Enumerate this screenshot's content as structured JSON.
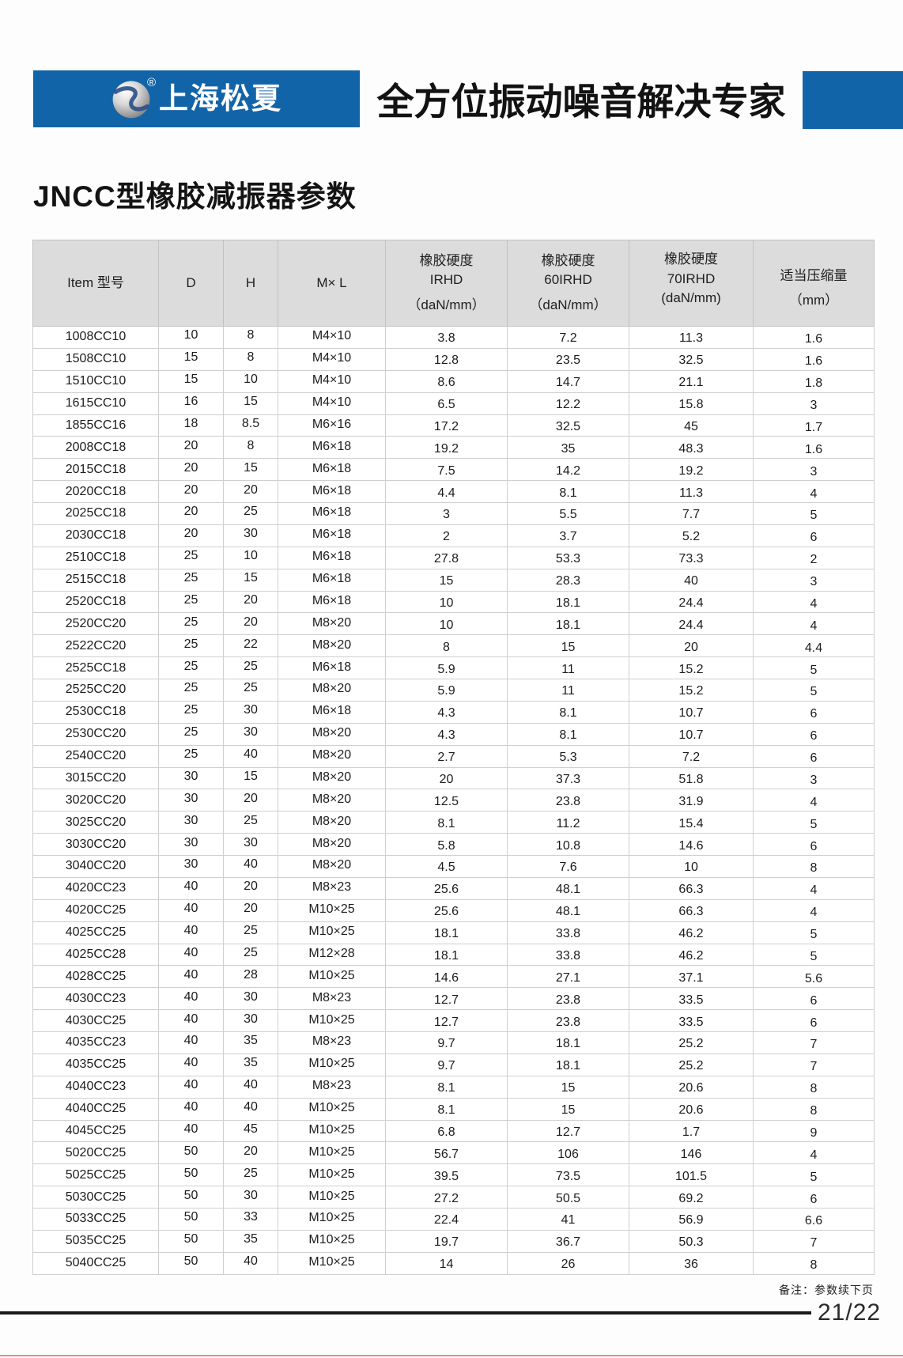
{
  "colors": {
    "brand_blue": "#1264a8",
    "table_header_gray": "#dcdcdc",
    "bottom_edge_red": "#e8897b"
  },
  "header": {
    "company_name": "上海松夏",
    "registered_mark": "®",
    "slogan": "全方位振动噪音解决专家"
  },
  "section_title": "JNCC型橡胶减振器参数",
  "table": {
    "header": [
      [
        "Item 型号"
      ],
      [
        "D"
      ],
      [
        "H"
      ],
      [
        "M× L"
      ],
      [
        "橡胶硬度",
        "IRHD",
        "（daN/mm）"
      ],
      [
        "橡胶硬度",
        "60IRHD",
        "（daN/mm）"
      ],
      [
        "橡胶硬度",
        "70IRHD",
        "(daN/mm)"
      ],
      [
        "适当压缩量",
        "（mm）"
      ]
    ],
    "rows": [
      [
        "1008CC10",
        "10",
        "8",
        "M4×10",
        "3.8",
        "7.2",
        "11.3",
        "1.6"
      ],
      [
        "1508CC10",
        "15",
        "8",
        "M4×10",
        "12.8",
        "23.5",
        "32.5",
        "1.6"
      ],
      [
        "1510CC10",
        "15",
        "10",
        "M4×10",
        "8.6",
        "14.7",
        "21.1",
        "1.8"
      ],
      [
        "1615CC10",
        "16",
        "15",
        "M4×10",
        "6.5",
        "12.2",
        "15.8",
        "3"
      ],
      [
        "1855CC16",
        "18",
        "8.5",
        "M6×16",
        "17.2",
        "32.5",
        "45",
        "1.7"
      ],
      [
        "2008CC18",
        "20",
        "8",
        "M6×18",
        "19.2",
        "35",
        "48.3",
        "1.6"
      ],
      [
        "2015CC18",
        "20",
        "15",
        "M6×18",
        "7.5",
        "14.2",
        "19.2",
        "3"
      ],
      [
        "2020CC18",
        "20",
        "20",
        "M6×18",
        "4.4",
        "8.1",
        "11.3",
        "4"
      ],
      [
        "2025CC18",
        "20",
        "25",
        "M6×18",
        "3",
        "5.5",
        "7.7",
        "5"
      ],
      [
        "2030CC18",
        "20",
        "30",
        "M6×18",
        "2",
        "3.7",
        "5.2",
        "6"
      ],
      [
        "2510CC18",
        "25",
        "10",
        "M6×18",
        "27.8",
        "53.3",
        "73.3",
        "2"
      ],
      [
        "2515CC18",
        "25",
        "15",
        "M6×18",
        "15",
        "28.3",
        "40",
        "3"
      ],
      [
        "2520CC18",
        "25",
        "20",
        "M6×18",
        "10",
        "18.1",
        "24.4",
        "4"
      ],
      [
        "2520CC20",
        "25",
        "20",
        "M8×20",
        "10",
        "18.1",
        "24.4",
        "4"
      ],
      [
        "2522CC20",
        "25",
        "22",
        "M8×20",
        "8",
        "15",
        "20",
        "4.4"
      ],
      [
        "2525CC18",
        "25",
        "25",
        "M6×18",
        "5.9",
        "11",
        "15.2",
        "5"
      ],
      [
        "2525CC20",
        "25",
        "25",
        "M8×20",
        "5.9",
        "11",
        "15.2",
        "5"
      ],
      [
        "2530CC18",
        "25",
        "30",
        "M6×18",
        "4.3",
        "8.1",
        "10.7",
        "6"
      ],
      [
        "2530CC20",
        "25",
        "30",
        "M8×20",
        "4.3",
        "8.1",
        "10.7",
        "6"
      ],
      [
        "2540CC20",
        "25",
        "40",
        "M8×20",
        "2.7",
        "5.3",
        "7.2",
        "6"
      ],
      [
        "3015CC20",
        "30",
        "15",
        "M8×20",
        "20",
        "37.3",
        "51.8",
        "3"
      ],
      [
        "3020CC20",
        "30",
        "20",
        "M8×20",
        "12.5",
        "23.8",
        "31.9",
        "4"
      ],
      [
        "3025CC20",
        "30",
        "25",
        "M8×20",
        "8.1",
        "11.2",
        "15.4",
        "5"
      ],
      [
        "3030CC20",
        "30",
        "30",
        "M8×20",
        "5.8",
        "10.8",
        "14.6",
        "6"
      ],
      [
        "3040CC20",
        "30",
        "40",
        "M8×20",
        "4.5",
        "7.6",
        "10",
        "8"
      ],
      [
        "4020CC23",
        "40",
        "20",
        "M8×23",
        "25.6",
        "48.1",
        "66.3",
        "4"
      ],
      [
        "4020CC25",
        "40",
        "20",
        "M10×25",
        "25.6",
        "48.1",
        "66.3",
        "4"
      ],
      [
        "4025CC25",
        "40",
        "25",
        "M10×25",
        "18.1",
        "33.8",
        "46.2",
        "5"
      ],
      [
        "4025CC28",
        "40",
        "25",
        "M12×28",
        "18.1",
        "33.8",
        "46.2",
        "5"
      ],
      [
        "4028CC25",
        "40",
        "28",
        "M10×25",
        "14.6",
        "27.1",
        "37.1",
        "5.6"
      ],
      [
        "4030CC23",
        "40",
        "30",
        "M8×23",
        "12.7",
        "23.8",
        "33.5",
        "6"
      ],
      [
        "4030CC25",
        "40",
        "30",
        "M10×25",
        "12.7",
        "23.8",
        "33.5",
        "6"
      ],
      [
        "4035CC23",
        "40",
        "35",
        "M8×23",
        "9.7",
        "18.1",
        "25.2",
        "7"
      ],
      [
        "4035CC25",
        "40",
        "35",
        "M10×25",
        "9.7",
        "18.1",
        "25.2",
        "7"
      ],
      [
        "4040CC23",
        "40",
        "40",
        "M8×23",
        "8.1",
        "15",
        "20.6",
        "8"
      ],
      [
        "4040CC25",
        "40",
        "40",
        "M10×25",
        "8.1",
        "15",
        "20.6",
        "8"
      ],
      [
        "4045CC25",
        "40",
        "45",
        "M10×25",
        "6.8",
        "12.7",
        "1.7",
        "9"
      ],
      [
        "5020CC25",
        "50",
        "20",
        "M10×25",
        "56.7",
        "106",
        "146",
        "4"
      ],
      [
        "5025CC25",
        "50",
        "25",
        "M10×25",
        "39.5",
        "73.5",
        "101.5",
        "5"
      ],
      [
        "5030CC25",
        "50",
        "30",
        "M10×25",
        "27.2",
        "50.5",
        "69.2",
        "6"
      ],
      [
        "5033CC25",
        "50",
        "33",
        "M10×25",
        "22.4",
        "41",
        "56.9",
        "6.6"
      ],
      [
        "5035CC25",
        "50",
        "35",
        "M10×25",
        "19.7",
        "36.7",
        "50.3",
        "7"
      ],
      [
        "5040CC25",
        "50",
        "40",
        "M10×25",
        "14",
        "26",
        "36",
        "8"
      ]
    ]
  },
  "footer": {
    "note": "备注：参数续下页",
    "page_number": "21/22"
  }
}
